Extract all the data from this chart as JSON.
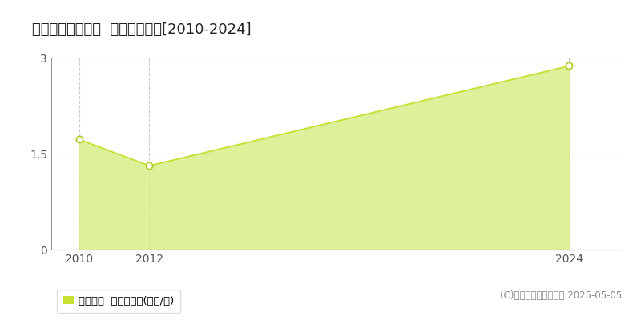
{
  "title": "中川郡幕別町寿町  土地価格推移[2010-2024]",
  "years": [
    2010,
    2012,
    2024
  ],
  "values": [
    1.72,
    1.31,
    2.87
  ],
  "line_color": "#c8e033",
  "fill_color": "#d8ee88",
  "fill_alpha": 0.85,
  "marker_color": "white",
  "marker_edgecolor": "#b0cc20",
  "marker_size": 6,
  "marker_linewidth": 1.2,
  "ylim": [
    0,
    3.0
  ],
  "yticks": [
    0,
    1.5,
    3
  ],
  "xticks": [
    2010,
    2012,
    2024
  ],
  "grid_color": "#cccccc",
  "grid_style": "--",
  "background_color": "#ffffff",
  "legend_label": "土地価格  平均坪単価(万円/坪)",
  "legend_color": "#c8e033",
  "copyright_text": "(C)土地価格ドットコム 2025-05-05",
  "title_fontsize": 13,
  "tick_fontsize": 10,
  "legend_fontsize": 9.5,
  "copyright_fontsize": 8.5,
  "xlim": [
    2009.2,
    2025.5
  ]
}
